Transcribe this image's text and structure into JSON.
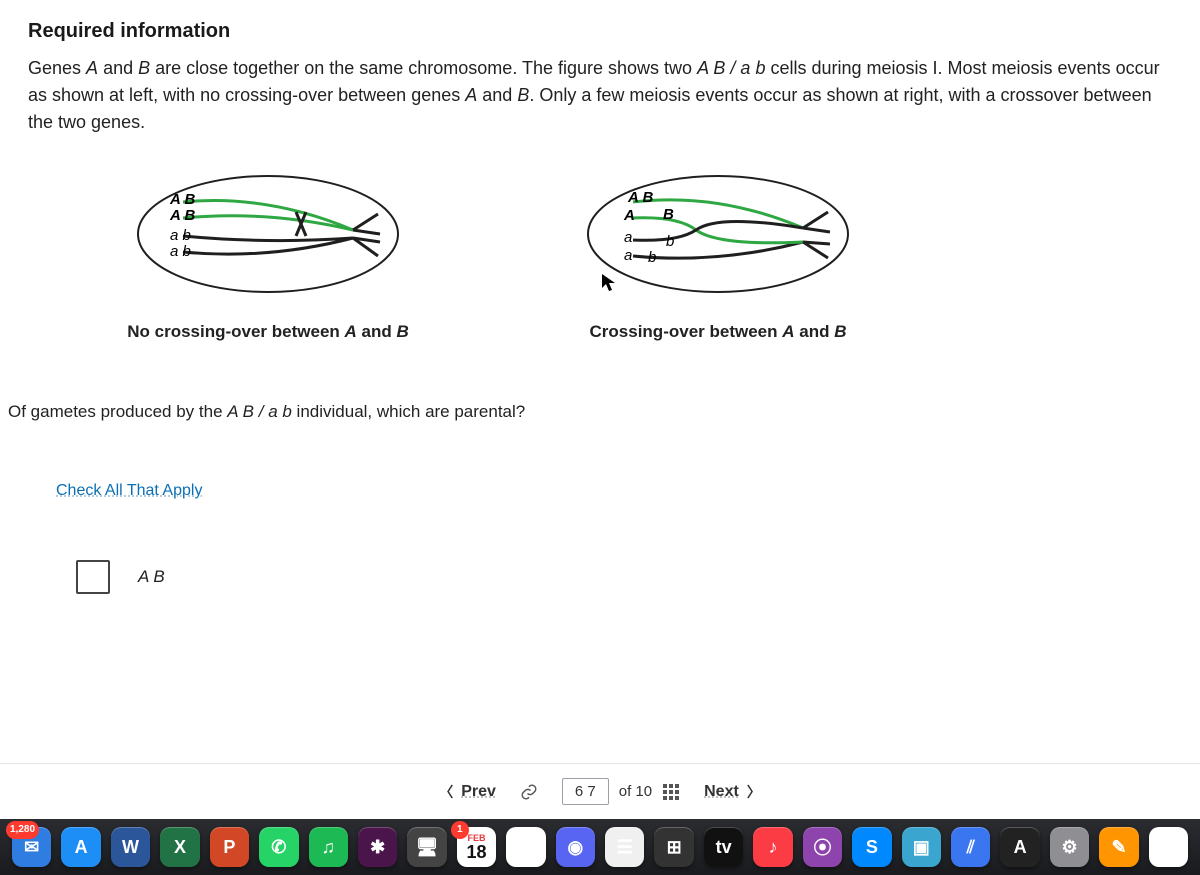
{
  "colors": {
    "page_bg": "#f4f5f6",
    "panel_bg": "#ffffff",
    "text": "#222222",
    "link": "#0b6fb3",
    "nav_border": "#e6e6e6",
    "dock_top": "#2a2c30",
    "dock_bottom": "#1a1b1f",
    "checkbox_border": "#444444"
  },
  "typography": {
    "heading_size_pt": 15,
    "body_size_pt": 13.5,
    "caption_size_pt": 13,
    "family": "-apple-system"
  },
  "heading": "Required information",
  "body": "Genes A and B are close together on the same chromosome. The figure shows two A B / a b cells during meiosis I. Most meiosis events occur as shown at left, with no crossing-over between genes A and B. Only a few meiosis events occur as shown at right, with a crossover between the two genes.",
  "figures": {
    "left": {
      "caption_html": "No crossing-over between <em>A</em> and <em>B</em>",
      "chromatids": [
        {
          "label": "A B",
          "color": "#2fa843"
        },
        {
          "label": "A B",
          "color": "#2fa843"
        },
        {
          "label": "a b",
          "color": "#1f1f1f"
        },
        {
          "label": "a b",
          "color": "#1f1f1f"
        }
      ],
      "crossover": false
    },
    "right": {
      "caption_html": "Crossing-over between <em>A</em> and <em>B</em>",
      "chromatids": [
        {
          "label": "A B",
          "color": "#2fa843"
        },
        {
          "label_left": "A",
          "label_right": "B",
          "color_left": "#2fa843",
          "color_right": "#1f1f1f"
        },
        {
          "label_left": "a",
          "label_right": "b",
          "color_left": "#1f1f1f",
          "color_right": "#2fa843"
        },
        {
          "label": "a  b",
          "color": "#1f1f1f"
        }
      ],
      "crossover": true
    },
    "cell_outline_color": "#1f1f1f",
    "cell_fill": "#ffffff",
    "stroke_width": 3
  },
  "question": "Of gametes produced by the A B / a b individual, which are parental?",
  "check_instruction": "Check All That Apply",
  "options": [
    {
      "label": "A B",
      "checked": false
    }
  ],
  "nav": {
    "prev": "Prev",
    "next": "Next",
    "page_range": "6   7",
    "total_label": "of 10"
  },
  "dock": {
    "badge_mail": "1,280",
    "cal_label": "FEB",
    "cal_day": "18",
    "cal_badge": "1",
    "icons": [
      {
        "name": "mail-icon",
        "bg": "#2f7de1",
        "glyph": "✉"
      },
      {
        "name": "app-store-icon",
        "bg": "#1e8ef7",
        "glyph": "A"
      },
      {
        "name": "word-icon",
        "bg": "#2b579a",
        "glyph": "W"
      },
      {
        "name": "excel-icon",
        "bg": "#217346",
        "glyph": "X"
      },
      {
        "name": "powerpoint-icon",
        "bg": "#d24726",
        "glyph": "P"
      },
      {
        "name": "whatsapp-icon",
        "bg": "#25d366",
        "glyph": "✆"
      },
      {
        "name": "spotify-icon",
        "bg": "#1db954",
        "glyph": "♫"
      },
      {
        "name": "slack-icon",
        "bg": "#4a154b",
        "glyph": "✱"
      },
      {
        "name": "display-icon",
        "bg": "#444",
        "glyph": "🖥"
      },
      {
        "name": "photos-icon",
        "bg": "#ffffff",
        "glyph": "❀"
      },
      {
        "name": "discord-icon",
        "bg": "#5865f2",
        "glyph": "◉"
      },
      {
        "name": "finder-icon",
        "bg": "#f0f0f0",
        "glyph": "☰"
      },
      {
        "name": "calculator-icon",
        "bg": "#333",
        "glyph": "⊞"
      },
      {
        "name": "appletv-icon",
        "bg": "#111",
        "glyph": "tv"
      },
      {
        "name": "music-icon",
        "bg": "#fc3c44",
        "glyph": "♪"
      },
      {
        "name": "podcast-icon",
        "bg": "#8e44ad",
        "glyph": "⦿"
      },
      {
        "name": "shazam-icon",
        "bg": "#0088ff",
        "glyph": "S"
      },
      {
        "name": "screens-icon",
        "bg": "#3aa6d0",
        "glyph": "▣"
      },
      {
        "name": "signal-icon",
        "bg": "#3a76f0",
        "glyph": "⫽"
      },
      {
        "name": "font-icon",
        "bg": "#222",
        "glyph": "A"
      },
      {
        "name": "settings-icon",
        "bg": "#8e8e93",
        "glyph": "⚙"
      },
      {
        "name": "notes-icon",
        "bg": "#ff9500",
        "glyph": "✎"
      },
      {
        "name": "chrome-icon",
        "bg": "#fff",
        "glyph": "◯"
      }
    ]
  }
}
